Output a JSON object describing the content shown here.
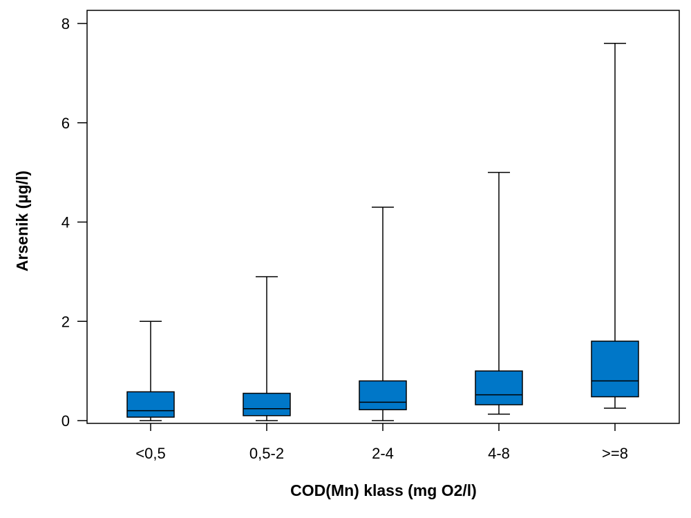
{
  "chart_data": {
    "type": "boxplot",
    "xlabel": "COD(Mn) klass (mg O2/l)",
    "ylabel": "Arsenik (µg/l)",
    "ylim": [
      0,
      8
    ],
    "yticks": [
      "0",
      "2",
      "4",
      "6",
      "8"
    ],
    "grid": false,
    "legend": "none",
    "box_color": "#0077c8",
    "categories": [
      "<0,5",
      "0,5-2",
      "2-4",
      "4-8",
      ">=8"
    ],
    "boxes": [
      {
        "category": "<0,5",
        "whisker_low": 0.0,
        "q1": 0.07,
        "median": 0.2,
        "q3": 0.58,
        "whisker_high": 2.0
      },
      {
        "category": "0,5-2",
        "whisker_low": 0.0,
        "q1": 0.1,
        "median": 0.24,
        "q3": 0.55,
        "whisker_high": 2.9
      },
      {
        "category": "2-4",
        "whisker_low": 0.0,
        "q1": 0.22,
        "median": 0.37,
        "q3": 0.8,
        "whisker_high": 4.3
      },
      {
        "category": "4-8",
        "whisker_low": 0.13,
        "q1": 0.32,
        "median": 0.52,
        "q3": 1.0,
        "whisker_high": 5.0
      },
      {
        "category": ">=8",
        "whisker_low": 0.25,
        "q1": 0.48,
        "median": 0.8,
        "q3": 1.6,
        "whisker_high": 7.6
      }
    ]
  }
}
